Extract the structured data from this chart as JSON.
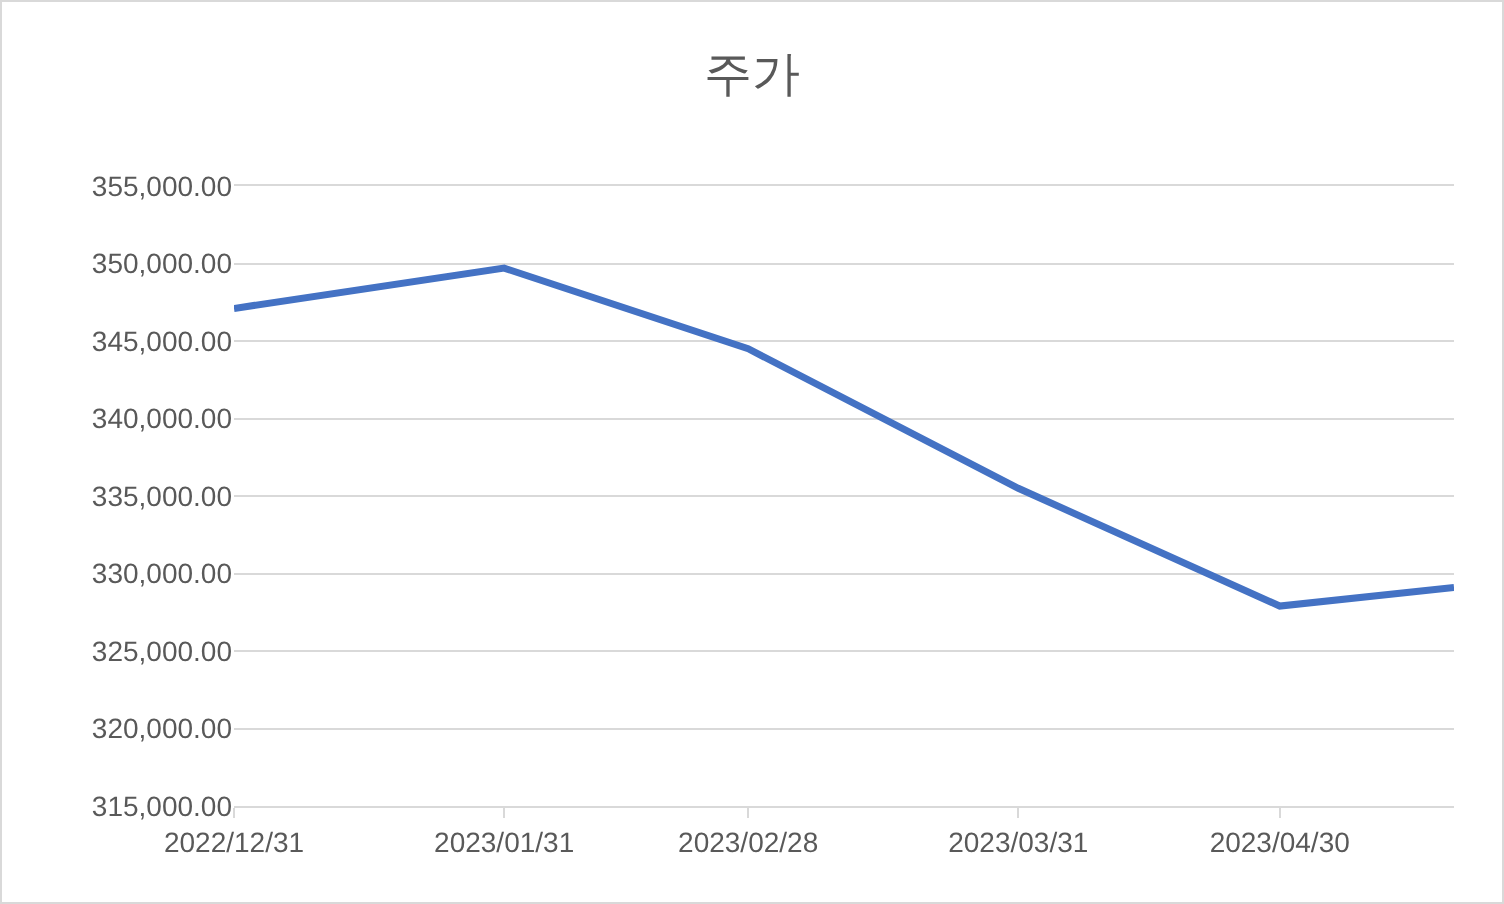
{
  "chart_data": {
    "type": "line",
    "title": "주가",
    "x": [
      "2022-12-31",
      "2023-01-31",
      "2023-02-28",
      "2023-03-31",
      "2023-04-30",
      "2023-05-20"
    ],
    "series": [
      {
        "color": "#4472c4",
        "values": [
          347100,
          349700,
          344500,
          335500,
          327900,
          329100
        ]
      }
    ],
    "xlim": [
      "2022-12-31",
      "2023-05-20"
    ],
    "xticks": [
      {
        "value": "2022-12-31",
        "label": "2022/12/31"
      },
      {
        "value": "2023-01-31",
        "label": "2023/01/31"
      },
      {
        "value": "2023-02-28",
        "label": "2023/02/28"
      },
      {
        "value": "2023-03-31",
        "label": "2023/03/31"
      },
      {
        "value": "2023-04-30",
        "label": "2023/04/30"
      }
    ],
    "ylim": [
      315000,
      355000
    ],
    "yticks": [
      {
        "value": 315000,
        "label": "315,000.00"
      },
      {
        "value": 320000,
        "label": "320,000.00"
      },
      {
        "value": 325000,
        "label": "325,000.00"
      },
      {
        "value": 330000,
        "label": "330,000.00"
      },
      {
        "value": 335000,
        "label": "335,000.00"
      },
      {
        "value": 340000,
        "label": "340,000.00"
      },
      {
        "value": 345000,
        "label": "345,000.00"
      },
      {
        "value": 350000,
        "label": "350,000.00"
      },
      {
        "value": 355000,
        "label": "355,000.00"
      }
    ],
    "grid": "y",
    "marker": "none",
    "line_style": "solid"
  }
}
